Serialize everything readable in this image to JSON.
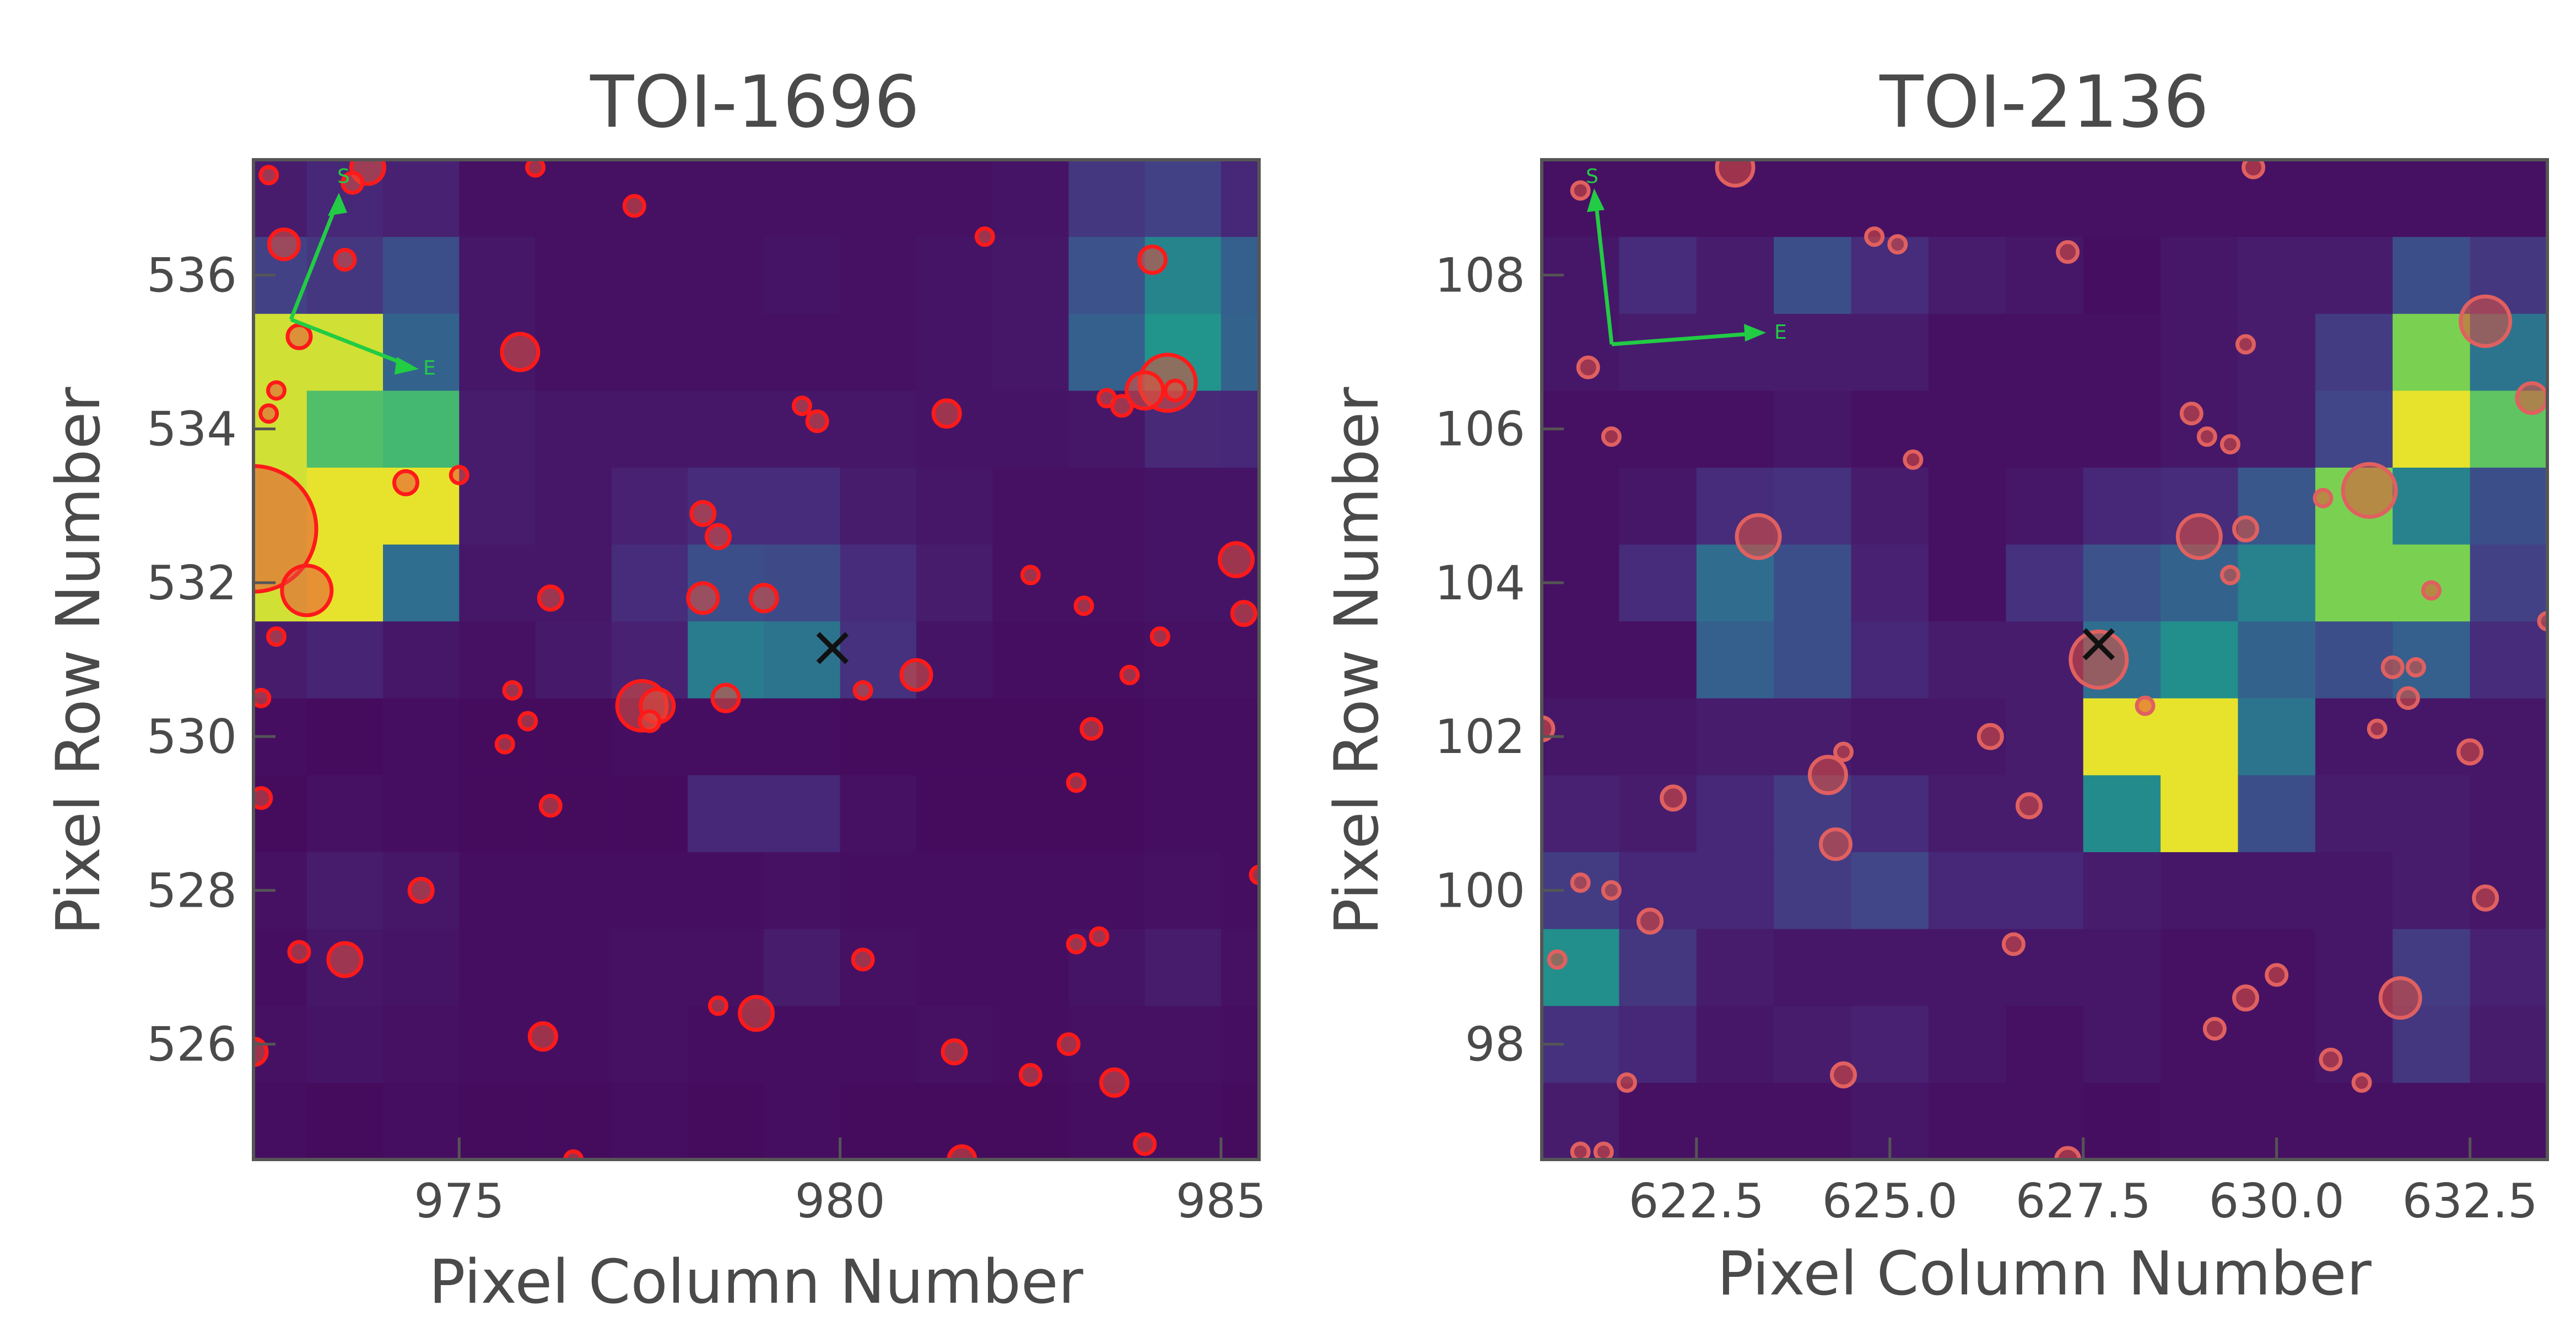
{
  "chart_data": [
    {
      "type": "heatmap",
      "title": "TOI-1696",
      "xlabel": "Pixel Column Number",
      "ylabel": "Pixel Row Number",
      "xlim": [
        972.3,
        985.5
      ],
      "ylim": [
        524.5,
        537.5
      ],
      "xticks": [
        975,
        980,
        985
      ],
      "xtick_labels": [
        "975",
        "980",
        "985"
      ],
      "yticks": [
        526,
        528,
        530,
        532,
        534,
        536
      ],
      "ytick_labels": [
        "526",
        "528",
        "530",
        "532",
        "534",
        "536"
      ],
      "col_start": 972.0,
      "row_start": 524.5,
      "grid": [
        [
          0.05,
          0.04,
          0.05,
          0.04,
          0.04,
          0.05,
          0.04,
          0.05,
          0.04,
          0.04,
          0.04,
          0.05,
          0.05,
          0.04
        ],
        [
          0.06,
          0.07,
          0.06,
          0.05,
          0.05,
          0.06,
          0.05,
          0.05,
          0.05,
          0.06,
          0.05,
          0.06,
          0.06,
          0.05
        ],
        [
          0.05,
          0.08,
          0.07,
          0.05,
          0.05,
          0.06,
          0.06,
          0.1,
          0.06,
          0.05,
          0.05,
          0.07,
          0.1,
          0.06
        ],
        [
          0.06,
          0.1,
          0.08,
          0.05,
          0.05,
          0.05,
          0.05,
          0.06,
          0.05,
          0.05,
          0.05,
          0.05,
          0.06,
          0.05
        ],
        [
          0.04,
          0.06,
          0.05,
          0.04,
          0.04,
          0.04,
          0.14,
          0.14,
          0.06,
          0.04,
          0.04,
          0.04,
          0.05,
          0.05
        ],
        [
          0.05,
          0.04,
          0.05,
          0.04,
          0.04,
          0.05,
          0.05,
          0.05,
          0.04,
          0.04,
          0.04,
          0.04,
          0.05,
          0.05
        ],
        [
          0.1,
          0.13,
          0.08,
          0.06,
          0.09,
          0.12,
          0.52,
          0.48,
          0.18,
          0.07,
          0.05,
          0.05,
          0.06,
          0.06
        ],
        [
          0.96,
          0.98,
          0.45,
          0.08,
          0.08,
          0.16,
          0.3,
          0.28,
          0.16,
          0.1,
          0.06,
          0.06,
          0.07,
          0.07
        ],
        [
          0.96,
          0.98,
          0.98,
          0.1,
          0.08,
          0.12,
          0.16,
          0.16,
          0.1,
          0.08,
          0.06,
          0.06,
          0.07,
          0.07
        ],
        [
          0.96,
          0.82,
          0.8,
          0.1,
          0.08,
          0.08,
          0.08,
          0.08,
          0.08,
          0.07,
          0.07,
          0.08,
          0.15,
          0.14
        ],
        [
          0.96,
          0.96,
          0.4,
          0.08,
          0.06,
          0.06,
          0.06,
          0.06,
          0.06,
          0.07,
          0.08,
          0.38,
          0.65,
          0.4
        ],
        [
          0.24,
          0.2,
          0.3,
          0.08,
          0.06,
          0.06,
          0.06,
          0.07,
          0.06,
          0.07,
          0.08,
          0.32,
          0.56,
          0.38
        ],
        [
          0.1,
          0.14,
          0.12,
          0.06,
          0.06,
          0.06,
          0.06,
          0.06,
          0.06,
          0.06,
          0.07,
          0.2,
          0.24,
          0.14
        ],
        [
          0.1,
          0.12,
          0.1,
          0.07,
          0.06,
          0.06,
          0.06,
          0.06,
          0.06,
          0.06,
          0.07,
          0.1,
          0.14,
          0.12
        ]
      ],
      "target": {
        "col": 979.9,
        "row": 531.15
      },
      "stars": [
        [
          972.3,
          532.7,
          38
        ],
        [
          973.0,
          531.9,
          15
        ],
        [
          972.9,
          535.2,
          7
        ],
        [
          972.7,
          536.4,
          9
        ],
        [
          973.5,
          536.2,
          6
        ],
        [
          972.6,
          534.5,
          5
        ],
        [
          972.5,
          534.2,
          5
        ],
        [
          972.6,
          531.3,
          5
        ],
        [
          972.4,
          530.5,
          5
        ],
        [
          972.5,
          537.3,
          5
        ],
        [
          973.8,
          537.4,
          10
        ],
        [
          973.6,
          537.2,
          6
        ],
        [
          974.3,
          533.3,
          7
        ],
        [
          975.0,
          533.4,
          5
        ],
        [
          975.8,
          535.0,
          11
        ],
        [
          976.0,
          537.4,
          5
        ],
        [
          977.3,
          536.9,
          6
        ],
        [
          975.7,
          530.6,
          5
        ],
        [
          975.9,
          530.2,
          5
        ],
        [
          975.6,
          529.9,
          5
        ],
        [
          976.2,
          531.8,
          7
        ],
        [
          976.2,
          529.1,
          6
        ],
        [
          974.5,
          528.0,
          7
        ],
        [
          973.5,
          527.1,
          10
        ],
        [
          972.9,
          527.2,
          6
        ],
        [
          972.4,
          529.2,
          6
        ],
        [
          976.1,
          526.1,
          8
        ],
        [
          977.4,
          530.4,
          15
        ],
        [
          977.6,
          530.4,
          10
        ],
        [
          977.5,
          530.2,
          6
        ],
        [
          978.2,
          532.9,
          7
        ],
        [
          978.4,
          532.6,
          7
        ],
        [
          978.2,
          531.8,
          9
        ],
        [
          979.0,
          531.8,
          8
        ],
        [
          978.5,
          530.5,
          8
        ],
        [
          980.3,
          530.6,
          5
        ],
        [
          981.0,
          530.8,
          9
        ],
        [
          979.5,
          534.3,
          5
        ],
        [
          979.7,
          534.1,
          6
        ],
        [
          981.4,
          534.2,
          8
        ],
        [
          981.9,
          536.5,
          5
        ],
        [
          984.1,
          536.2,
          8
        ],
        [
          984.3,
          534.6,
          17
        ],
        [
          984.0,
          534.5,
          11
        ],
        [
          983.7,
          534.3,
          6
        ],
        [
          984.4,
          534.5,
          6
        ],
        [
          983.5,
          534.4,
          5
        ],
        [
          982.5,
          532.1,
          5
        ],
        [
          983.2,
          531.7,
          5
        ],
        [
          984.2,
          531.3,
          5
        ],
        [
          985.2,
          532.3,
          10
        ],
        [
          985.3,
          531.6,
          7
        ],
        [
          983.8,
          530.8,
          5
        ],
        [
          983.3,
          530.1,
          6
        ],
        [
          983.1,
          529.4,
          5
        ],
        [
          978.4,
          526.5,
          5
        ],
        [
          978.9,
          526.4,
          10
        ],
        [
          980.3,
          527.1,
          6
        ],
        [
          981.5,
          525.9,
          7
        ],
        [
          983.1,
          527.3,
          5
        ],
        [
          983.4,
          527.4,
          5
        ],
        [
          982.5,
          525.6,
          6
        ],
        [
          983.0,
          526.0,
          6
        ],
        [
          983.6,
          525.5,
          8
        ],
        [
          984.0,
          524.7,
          6
        ],
        [
          981.6,
          524.5,
          8
        ],
        [
          976.5,
          524.5,
          5
        ],
        [
          972.3,
          525.9,
          8
        ],
        [
          985.5,
          528.2,
          5
        ]
      ],
      "compass": {
        "north_label": "S",
        "east_label": "E"
      }
    },
    {
      "type": "heatmap",
      "title": "TOI-2136",
      "xlabel": "Pixel Column Number",
      "ylabel": "Pixel Row Number",
      "xlim": [
        620.5,
        633.5
      ],
      "ylim": [
        96.5,
        109.5
      ],
      "xticks": [
        622.5,
        625.0,
        627.5,
        630.0,
        632.5
      ],
      "xtick_labels": [
        "622.5",
        "625.0",
        "627.5",
        "630.0",
        "632.5"
      ],
      "yticks": [
        98,
        100,
        102,
        104,
        106,
        108
      ],
      "ytick_labels": [
        "98",
        "100",
        "102",
        "104",
        "106",
        "108"
      ],
      "col_start": 620.5,
      "row_start": 96.5,
      "grid": [
        [
          0.1,
          0.06,
          0.06,
          0.06,
          0.08,
          0.06,
          0.06,
          0.05,
          0.06,
          0.06,
          0.06,
          0.06,
          0.06
        ],
        [
          0.18,
          0.14,
          0.08,
          0.1,
          0.12,
          0.08,
          0.06,
          0.08,
          0.06,
          0.06,
          0.08,
          0.2,
          0.1
        ],
        [
          0.62,
          0.2,
          0.1,
          0.08,
          0.08,
          0.08,
          0.08,
          0.08,
          0.06,
          0.06,
          0.08,
          0.22,
          0.12
        ],
        [
          0.22,
          0.14,
          0.14,
          0.22,
          0.26,
          0.14,
          0.14,
          0.1,
          0.08,
          0.08,
          0.08,
          0.1,
          0.08
        ],
        [
          0.12,
          0.1,
          0.14,
          0.22,
          0.16,
          0.1,
          0.1,
          0.6,
          0.98,
          0.3,
          0.1,
          0.1,
          0.08
        ],
        [
          0.08,
          0.08,
          0.1,
          0.1,
          0.08,
          0.08,
          0.1,
          0.98,
          0.98,
          0.48,
          0.08,
          0.08,
          0.08
        ],
        [
          0.06,
          0.06,
          0.38,
          0.3,
          0.14,
          0.1,
          0.1,
          0.45,
          0.62,
          0.4,
          0.3,
          0.38,
          0.16
        ],
        [
          0.06,
          0.16,
          0.44,
          0.3,
          0.12,
          0.06,
          0.18,
          0.32,
          0.4,
          0.55,
          0.88,
          0.88,
          0.24
        ],
        [
          0.06,
          0.08,
          0.16,
          0.18,
          0.1,
          0.06,
          0.08,
          0.14,
          0.16,
          0.34,
          0.88,
          0.55,
          0.3
        ],
        [
          0.06,
          0.06,
          0.06,
          0.08,
          0.06,
          0.06,
          0.06,
          0.06,
          0.08,
          0.1,
          0.26,
          0.98,
          0.84
        ],
        [
          0.08,
          0.1,
          0.1,
          0.1,
          0.1,
          0.06,
          0.06,
          0.06,
          0.08,
          0.1,
          0.22,
          0.88,
          0.48
        ],
        [
          0.08,
          0.16,
          0.1,
          0.3,
          0.16,
          0.1,
          0.08,
          0.05,
          0.08,
          0.1,
          0.1,
          0.3,
          0.2
        ],
        [
          0.06,
          0.06,
          0.06,
          0.06,
          0.06,
          0.06,
          0.06,
          0.06,
          0.06,
          0.06,
          0.06,
          0.06,
          0.06
        ]
      ],
      "target": {
        "col": 627.7,
        "row": 103.2
      },
      "stars": [
        [
          623.0,
          109.4,
          11
        ],
        [
          621.0,
          109.1,
          5
        ],
        [
          621.1,
          106.8,
          6
        ],
        [
          624.8,
          108.5,
          5
        ],
        [
          625.1,
          108.4,
          5
        ],
        [
          627.3,
          108.3,
          6
        ],
        [
          629.7,
          109.4,
          6
        ],
        [
          621.4,
          105.9,
          5
        ],
        [
          625.3,
          105.6,
          5
        ],
        [
          623.3,
          104.6,
          13
        ],
        [
          629.0,
          104.6,
          13
        ],
        [
          629.6,
          104.7,
          7
        ],
        [
          629.4,
          104.1,
          5
        ],
        [
          628.9,
          106.2,
          6
        ],
        [
          629.1,
          105.9,
          5
        ],
        [
          629.4,
          105.8,
          5
        ],
        [
          629.6,
          107.1,
          5
        ],
        [
          631.2,
          105.2,
          16
        ],
        [
          630.6,
          105.1,
          5
        ],
        [
          632.7,
          107.4,
          15
        ],
        [
          633.3,
          106.4,
          9
        ],
        [
          632.0,
          103.9,
          5
        ],
        [
          633.5,
          103.5,
          5
        ],
        [
          627.7,
          103.0,
          17
        ],
        [
          628.3,
          102.4,
          5
        ],
        [
          626.3,
          102.0,
          7
        ],
        [
          624.4,
          101.8,
          5
        ],
        [
          624.2,
          101.5,
          11
        ],
        [
          624.3,
          100.6,
          9
        ],
        [
          622.2,
          101.2,
          7
        ],
        [
          626.8,
          101.1,
          7
        ],
        [
          620.5,
          102.1,
          7
        ],
        [
          631.5,
          102.9,
          6
        ],
        [
          631.8,
          102.9,
          5
        ],
        [
          631.7,
          102.5,
          6
        ],
        [
          631.3,
          102.1,
          5
        ],
        [
          632.5,
          101.8,
          7
        ],
        [
          632.7,
          99.9,
          7
        ],
        [
          621.4,
          100.0,
          5
        ],
        [
          621.9,
          99.6,
          7
        ],
        [
          621.0,
          100.1,
          5
        ],
        [
          620.7,
          99.1,
          5
        ],
        [
          626.6,
          99.3,
          6
        ],
        [
          629.6,
          98.6,
          7
        ],
        [
          630.0,
          98.9,
          6
        ],
        [
          631.6,
          98.6,
          12
        ],
        [
          629.2,
          98.2,
          6
        ],
        [
          631.1,
          97.5,
          5
        ],
        [
          630.7,
          97.8,
          6
        ],
        [
          621.6,
          97.5,
          5
        ],
        [
          624.4,
          97.6,
          7
        ],
        [
          621.3,
          96.6,
          5
        ],
        [
          621.0,
          96.6,
          5
        ],
        [
          627.3,
          96.5,
          7
        ]
      ],
      "compass": {
        "north_label": "S",
        "east_label": "E"
      }
    }
  ]
}
